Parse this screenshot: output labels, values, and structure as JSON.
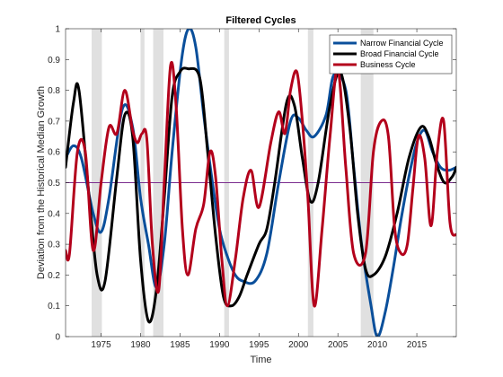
{
  "chart_data": {
    "type": "line",
    "title": "Filtered Cycles",
    "xlabel": "Time",
    "ylabel": "Deviation from the Historical Median Growth",
    "xlim": [
      1970.5,
      2020
    ],
    "ylim": [
      0,
      1
    ],
    "x_ticks": [
      1975,
      1980,
      1985,
      1990,
      1995,
      2000,
      2005,
      2010,
      2015
    ],
    "y_ticks": [
      0,
      0.1,
      0.2,
      0.3,
      0.4,
      0.5,
      0.6,
      0.7,
      0.8,
      0.9,
      1
    ],
    "grid": false,
    "legend_position": "top-right",
    "reference_line": {
      "y": 0.5,
      "color": "#7B2D8E"
    },
    "recession_color": "#E0E0E0",
    "recessions": [
      [
        1973.8,
        1975.1
      ],
      [
        1980.0,
        1980.5
      ],
      [
        1981.6,
        1982.9
      ],
      [
        1990.6,
        1991.2
      ],
      [
        2001.2,
        2001.9
      ],
      [
        2007.9,
        2009.5
      ]
    ],
    "series": [
      {
        "name": "Narrow Financial Cycle",
        "color": "#0A4F9B",
        "x": [
          1970.5,
          1971.5,
          1972.5,
          1974,
          1975,
          1976,
          1977.7,
          1979,
          1980,
          1981,
          1982,
          1983,
          1984,
          1985.2,
          1986.1,
          1987,
          1988,
          1989,
          1990,
          1991,
          1992,
          1993,
          1994.5,
          1996,
          1997.5,
          1999,
          2000,
          2001,
          2002,
          2003.5,
          2004.5,
          2006,
          2007,
          2008,
          2009.2,
          2010,
          2011,
          2012,
          2013,
          2014,
          2015,
          2016,
          2017,
          2018,
          2019,
          2020
        ],
        "y": [
          0.58,
          0.62,
          0.58,
          0.4,
          0.34,
          0.45,
          0.74,
          0.68,
          0.45,
          0.3,
          0.16,
          0.3,
          0.6,
          0.9,
          1.0,
          0.94,
          0.72,
          0.52,
          0.35,
          0.26,
          0.2,
          0.18,
          0.18,
          0.27,
          0.5,
          0.7,
          0.71,
          0.67,
          0.65,
          0.72,
          0.85,
          0.8,
          0.55,
          0.3,
          0.1,
          0.0,
          0.08,
          0.22,
          0.38,
          0.52,
          0.63,
          0.67,
          0.6,
          0.55,
          0.54,
          0.55
        ]
      },
      {
        "name": "Broad Financial Cycle",
        "color": "#000000",
        "x": [
          1970.5,
          1971.5,
          1972.2,
          1973.5,
          1974.5,
          1975.5,
          1977,
          1978,
          1979,
          1980,
          1981,
          1982,
          1983,
          1984,
          1985,
          1986,
          1987.5,
          1988.5,
          1989.5,
          1990.5,
          1991.5,
          1992.5,
          1993.5,
          1995,
          1996,
          1997,
          1998.5,
          1999.5,
          2000.5,
          2001.5,
          2002.5,
          2004,
          2005.3,
          2006.5,
          2007.5,
          2008.5,
          2009.5,
          2011,
          2012.5,
          2014,
          2015.5,
          2016.5,
          2017.5,
          2018.5,
          2019.5,
          2020
        ],
        "y": [
          0.55,
          0.76,
          0.8,
          0.45,
          0.2,
          0.18,
          0.52,
          0.72,
          0.65,
          0.25,
          0.05,
          0.15,
          0.45,
          0.78,
          0.86,
          0.87,
          0.84,
          0.6,
          0.33,
          0.13,
          0.1,
          0.13,
          0.2,
          0.3,
          0.35,
          0.5,
          0.76,
          0.75,
          0.58,
          0.44,
          0.5,
          0.75,
          0.86,
          0.68,
          0.4,
          0.22,
          0.2,
          0.26,
          0.4,
          0.58,
          0.68,
          0.65,
          0.56,
          0.5,
          0.52,
          0.55
        ]
      },
      {
        "name": "Business Cycle",
        "color": "#B3001B",
        "x": [
          1970.5,
          1971,
          1972,
          1973,
          1974,
          1975,
          1976,
          1977,
          1978,
          1979,
          1979.6,
          1980.2,
          1980.8,
          1981.5,
          1982.3,
          1983,
          1983.8,
          1984.5,
          1985.3,
          1986,
          1987,
          1988,
          1988.8,
          1989.5,
          1990.3,
          1991,
          1992,
          1993,
          1994,
          1995,
          1996.5,
          1997.5,
          1998.3,
          1999,
          1999.8,
          2000.5,
          2001.2,
          2002,
          2003,
          2004,
          2005,
          2006,
          2007,
          2008.5,
          2009.5,
          2010.5,
          2011.4,
          2012.2,
          2013,
          2013.8,
          2014.5,
          2015.2,
          2016,
          2016.8,
          2017.6,
          2018.4,
          2019.2,
          2020
        ],
        "y": [
          0.28,
          0.27,
          0.6,
          0.6,
          0.28,
          0.5,
          0.68,
          0.66,
          0.8,
          0.67,
          0.63,
          0.66,
          0.64,
          0.3,
          0.15,
          0.5,
          0.88,
          0.75,
          0.35,
          0.2,
          0.35,
          0.43,
          0.6,
          0.52,
          0.25,
          0.1,
          0.25,
          0.45,
          0.54,
          0.42,
          0.63,
          0.73,
          0.66,
          0.8,
          0.86,
          0.7,
          0.45,
          0.1,
          0.35,
          0.65,
          0.87,
          0.55,
          0.27,
          0.27,
          0.6,
          0.7,
          0.65,
          0.35,
          0.27,
          0.3,
          0.48,
          0.65,
          0.58,
          0.36,
          0.6,
          0.7,
          0.37,
          0.33
        ]
      }
    ]
  }
}
